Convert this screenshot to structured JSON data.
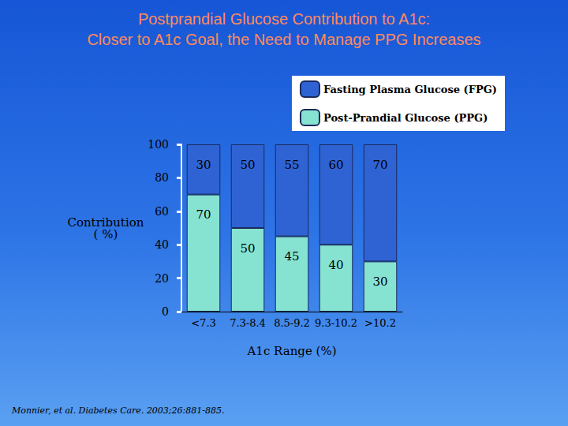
{
  "chart_data": {
    "type": "bar",
    "title": "Postprandial Glucose Contribution to A1c:\nCloser to A1c Goal, the Need to Manage PPG Increases",
    "ylabel": "Contribution\n( %)",
    "xlabel": "A1c Range (%)",
    "annotations": [
      "Monnier, et al. Diabetes Care. 2003;26:881-885."
    ],
    "categories": [
      "<7.3",
      "7.3-8.4",
      "8.5-9.2",
      "9.3-10.2",
      ">10.2"
    ],
    "series": [
      {
        "name": "Fasting Plasma Glucose (FPG)",
        "color": "#2f63d3",
        "values": [
          30,
          50,
          55,
          60,
          70
        ]
      },
      {
        "name": "Post-Prandial Glucose (PPG)",
        "color": "#86e3d2",
        "values": [
          70,
          50,
          45,
          40,
          30
        ]
      }
    ],
    "stacked": true,
    "data_labels": true,
    "legend": "upper right",
    "ylim": [
      0,
      100
    ],
    "yticks": [
      0,
      20,
      40,
      60,
      80,
      100
    ],
    "grid": false
  }
}
